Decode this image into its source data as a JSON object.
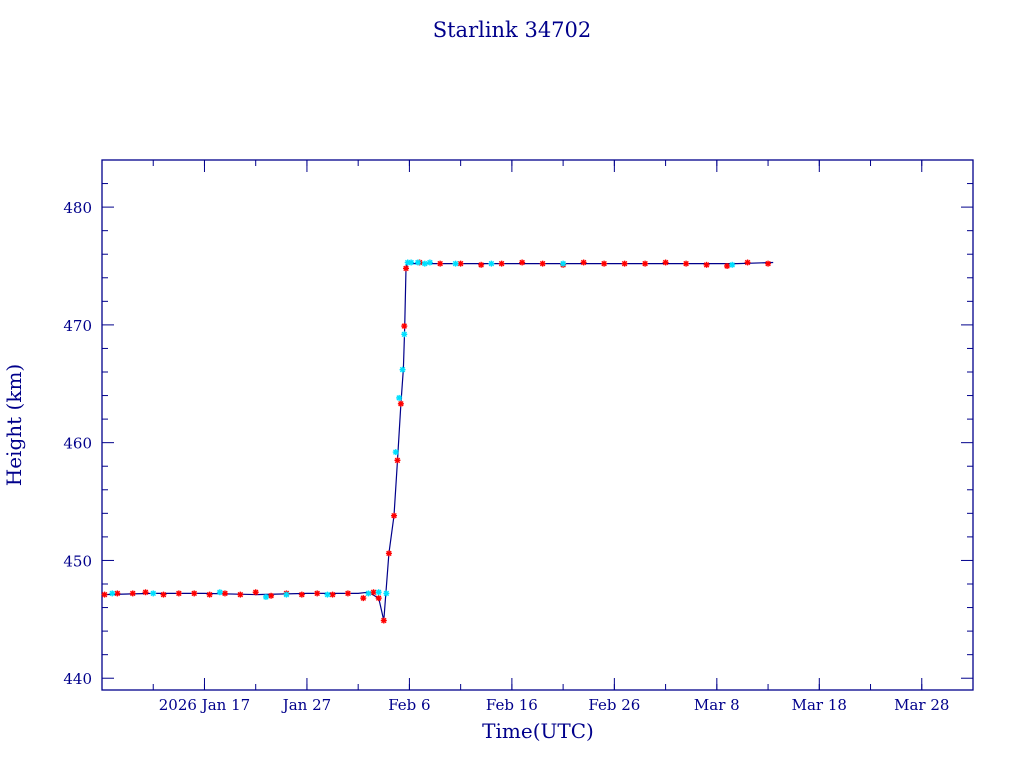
{
  "chart_data": {
    "type": "line",
    "title": "Starlink 34702",
    "xlabel": "Time(UTC)",
    "ylabel": "Height (km)",
    "x_ticks": [
      "2026 Jan 17",
      "Jan 27",
      "Feb  6",
      "Feb 16",
      "Feb 26",
      "Mar  8",
      "Mar 18",
      "Mar 28"
    ],
    "x_tick_dates": [
      "2026-01-17",
      "2026-01-27",
      "2026-02-06",
      "2026-02-16",
      "2026-02-26",
      "2026-03-08",
      "2026-03-18",
      "2026-03-28"
    ],
    "y_ticks": [
      440,
      450,
      460,
      470,
      480
    ],
    "xlim": [
      "2026-01-07",
      "2026-04-02"
    ],
    "ylim": [
      439,
      484
    ],
    "grid": false,
    "series": [
      {
        "color": "#00008b",
        "marker": "line",
        "x": [
          "2026-01-07T00:00",
          "2026-01-12T00:00",
          "2026-01-17T00:00",
          "2026-01-22T00:00",
          "2026-01-27T00:00",
          "2026-02-01T00:00",
          "2026-02-02T00:00",
          "2026-02-03T00:00",
          "2026-02-03T12:00",
          "2026-02-04T00:00",
          "2026-02-04T12:00",
          "2026-02-04T20:00",
          "2026-02-05T04:00",
          "2026-02-05T10:00",
          "2026-02-05T13:00",
          "2026-02-05T16:00",
          "2026-02-05T20:00",
          "2026-02-06T04:00",
          "2026-02-06T12:00",
          "2026-02-10T00:00",
          "2026-02-16T00:00",
          "2026-02-22T00:00",
          "2026-02-28T00:00",
          "2026-03-05T00:00",
          "2026-03-10T00:00",
          "2026-03-13T12:00"
        ],
        "y": [
          447.1,
          447.2,
          447.2,
          447.1,
          447.2,
          447.2,
          447.3,
          446.8,
          444.9,
          450.6,
          453.8,
          458.5,
          463.3,
          466.3,
          469.8,
          474.8,
          475.3,
          475.3,
          475.2,
          475.2,
          475.2,
          475.2,
          475.2,
          475.2,
          475.2,
          475.3
        ]
      },
      {
        "color": "#ff0000",
        "marker": "star",
        "x": [
          "2026-01-07T06:00",
          "2026-01-08T12:00",
          "2026-01-10T00:00",
          "2026-01-11T06:00",
          "2026-01-13T00:00",
          "2026-01-14T12:00",
          "2026-01-16T00:00",
          "2026-01-17T12:00",
          "2026-01-19T00:00",
          "2026-01-20T12:00",
          "2026-01-22T00:00",
          "2026-01-23T12:00",
          "2026-01-25T00:00",
          "2026-01-26T12:00",
          "2026-01-28T00:00",
          "2026-01-29T12:00",
          "2026-01-31T00:00",
          "2026-02-01T12:00",
          "2026-02-02T12:00",
          "2026-02-03T00:00",
          "2026-02-03T12:00",
          "2026-02-04T00:00",
          "2026-02-04T12:00",
          "2026-02-04T20:00",
          "2026-02-05T04:00",
          "2026-02-05T12:00",
          "2026-02-05T16:00",
          "2026-02-07T00:00",
          "2026-02-09T00:00",
          "2026-02-11T00:00",
          "2026-02-13T00:00",
          "2026-02-15T00:00",
          "2026-02-17T00:00",
          "2026-02-19T00:00",
          "2026-02-21T00:00",
          "2026-02-23T00:00",
          "2026-02-25T00:00",
          "2026-02-27T00:00",
          "2026-03-01T00:00",
          "2026-03-03T00:00",
          "2026-03-05T00:00",
          "2026-03-07T00:00",
          "2026-03-09T00:00",
          "2026-03-11T00:00",
          "2026-03-13T00:00"
        ],
        "y": [
          447.1,
          447.2,
          447.2,
          447.3,
          447.1,
          447.2,
          447.2,
          447.1,
          447.2,
          447.1,
          447.3,
          447.0,
          447.2,
          447.1,
          447.2,
          447.1,
          447.2,
          446.8,
          447.3,
          446.8,
          444.9,
          450.6,
          453.8,
          458.5,
          463.3,
          469.9,
          474.8,
          475.3,
          475.2,
          475.2,
          475.1,
          475.2,
          475.3,
          475.2,
          475.1,
          475.3,
          475.2,
          475.2,
          475.2,
          475.3,
          475.2,
          475.1,
          475.0,
          475.3,
          475.2
        ]
      },
      {
        "color": "#00e0ff",
        "marker": "star",
        "x": [
          "2026-01-08T00:00",
          "2026-01-12T00:00",
          "2026-01-18T12:00",
          "2026-01-23T00:00",
          "2026-01-25T00:00",
          "2026-01-29T00:00",
          "2026-02-02T00:00",
          "2026-02-03T00:00",
          "2026-02-03T18:00",
          "2026-02-04T16:00",
          "2026-02-05T00:00",
          "2026-02-05T08:00",
          "2026-02-05T12:00",
          "2026-02-05T20:00",
          "2026-02-06T04:00",
          "2026-02-06T20:00",
          "2026-02-07T12:00",
          "2026-02-08T00:00",
          "2026-02-10T12:00",
          "2026-02-14T00:00",
          "2026-02-21T00:00",
          "2026-03-09T12:00"
        ],
        "y": [
          447.2,
          447.2,
          447.3,
          446.9,
          447.1,
          447.1,
          447.2,
          447.3,
          447.2,
          459.2,
          463.8,
          466.2,
          469.2,
          475.3,
          475.3,
          475.3,
          475.2,
          475.3,
          475.2,
          475.2,
          475.2,
          475.1
        ]
      }
    ]
  }
}
